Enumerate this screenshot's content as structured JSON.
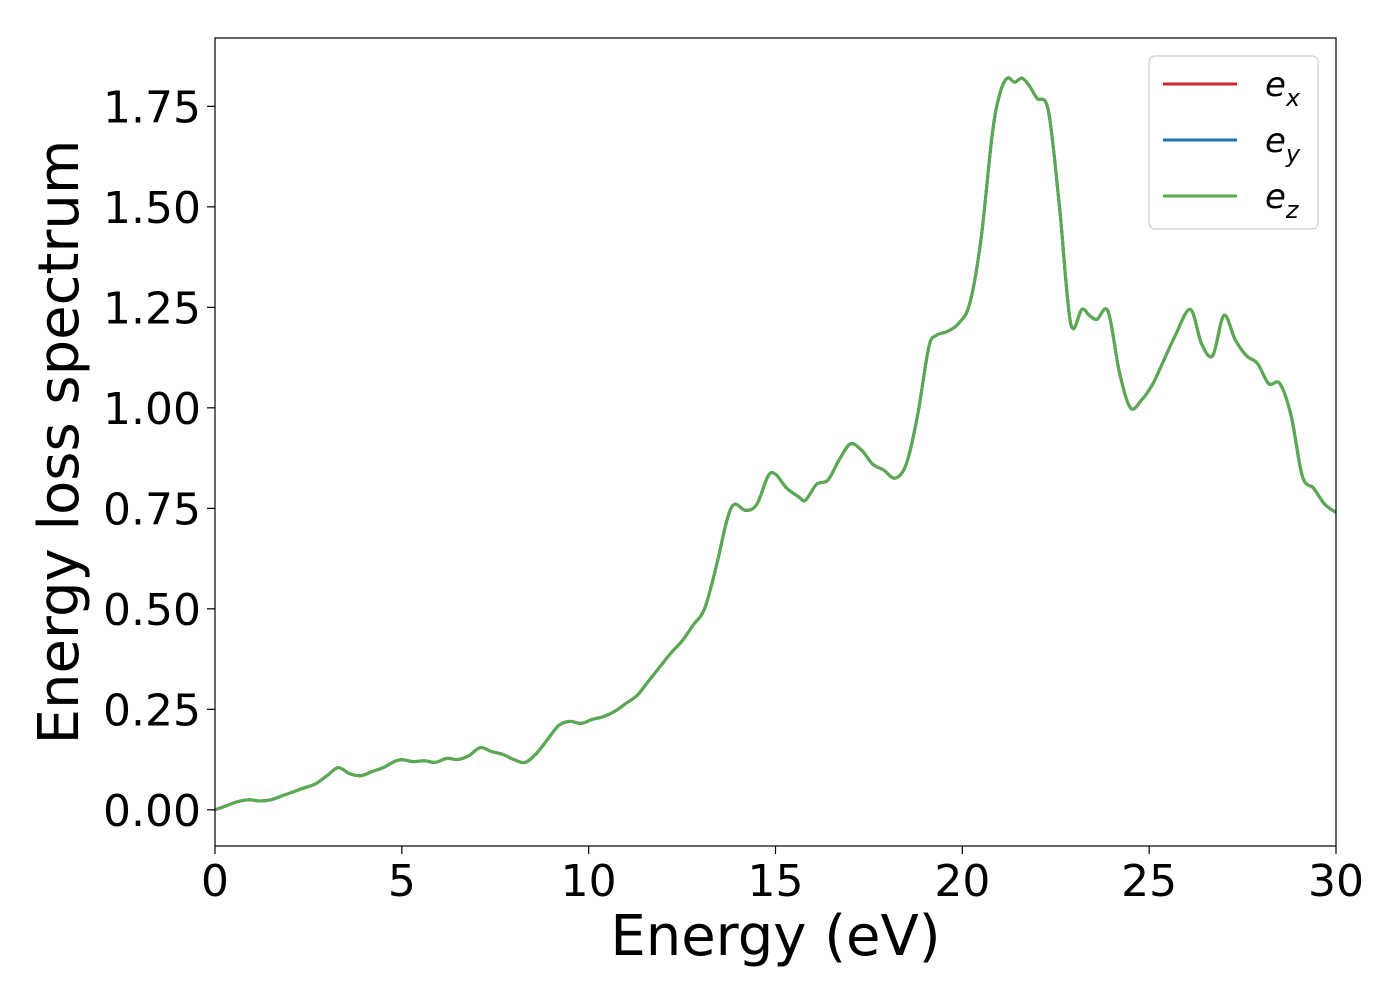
{
  "chart_data": {
    "type": "line",
    "title": "",
    "xlabel": "Energy (eV)",
    "ylabel": "Energy loss spectrum",
    "xlim": [
      0,
      30
    ],
    "ylim": [
      -0.09,
      1.92
    ],
    "xticks": [
      0,
      5,
      10,
      15,
      20,
      25,
      30
    ],
    "yticks": [
      0.0,
      0.25,
      0.5,
      0.75,
      1.0,
      1.25,
      1.5,
      1.75
    ],
    "ytick_labels": [
      "0.00",
      "0.25",
      "0.50",
      "0.75",
      "1.00",
      "1.25",
      "1.50",
      "1.75"
    ],
    "grid": false,
    "legend_position": "top-right",
    "x": [
      0,
      0.3,
      0.6,
      0.9,
      1.2,
      1.5,
      1.8,
      2.1,
      2.4,
      2.7,
      3.0,
      3.3,
      3.6,
      3.9,
      4.2,
      4.5,
      4.8,
      5.0,
      5.3,
      5.6,
      5.9,
      6.2,
      6.5,
      6.8,
      7.1,
      7.4,
      7.7,
      8.0,
      8.3,
      8.6,
      8.9,
      9.2,
      9.5,
      9.8,
      10.1,
      10.4,
      10.7,
      11.0,
      11.3,
      11.6,
      11.9,
      12.2,
      12.5,
      12.8,
      13.1,
      13.4,
      13.7,
      13.9,
      14.2,
      14.5,
      14.8,
      15.0,
      15.3,
      15.6,
      15.8,
      16.1,
      16.4,
      16.7,
      17.0,
      17.3,
      17.6,
      17.9,
      18.2,
      18.5,
      18.8,
      19.1,
      19.3,
      19.6,
      19.9,
      20.2,
      20.5,
      20.8,
      21.0,
      21.2,
      21.4,
      21.6,
      21.8,
      22.0,
      22.3,
      22.6,
      22.9,
      23.2,
      23.4,
      23.6,
      23.9,
      24.2,
      24.5,
      24.8,
      25.1,
      25.4,
      25.7,
      26.1,
      26.4,
      26.7,
      27.0,
      27.3,
      27.6,
      27.9,
      28.2,
      28.5,
      28.8,
      29.1,
      29.4,
      29.7,
      30.0
    ],
    "series": [
      {
        "name": "e_x",
        "legend_base": "e",
        "legend_sub": "x",
        "color": "#d62728",
        "values": [
          0.0,
          0.01,
          0.02,
          0.025,
          0.022,
          0.025,
          0.035,
          0.045,
          0.055,
          0.065,
          0.085,
          0.105,
          0.09,
          0.085,
          0.095,
          0.105,
          0.12,
          0.125,
          0.12,
          0.122,
          0.118,
          0.128,
          0.125,
          0.135,
          0.155,
          0.145,
          0.138,
          0.125,
          0.118,
          0.14,
          0.175,
          0.21,
          0.22,
          0.215,
          0.225,
          0.232,
          0.245,
          0.265,
          0.285,
          0.32,
          0.355,
          0.39,
          0.42,
          0.46,
          0.5,
          0.6,
          0.72,
          0.76,
          0.745,
          0.76,
          0.83,
          0.835,
          0.8,
          0.78,
          0.77,
          0.81,
          0.82,
          0.87,
          0.91,
          0.895,
          0.86,
          0.845,
          0.825,
          0.86,
          0.98,
          1.15,
          1.18,
          1.19,
          1.21,
          1.26,
          1.42,
          1.68,
          1.78,
          1.82,
          1.81,
          1.82,
          1.8,
          1.77,
          1.74,
          1.5,
          1.21,
          1.245,
          1.23,
          1.22,
          1.24,
          1.09,
          1.0,
          1.02,
          1.06,
          1.12,
          1.18,
          1.245,
          1.16,
          1.13,
          1.23,
          1.17,
          1.13,
          1.11,
          1.06,
          1.06,
          0.98,
          0.83,
          0.8,
          0.76,
          0.74
        ]
      },
      {
        "name": "e_y",
        "legend_base": "e",
        "legend_sub": "y",
        "color": "#1f77b4",
        "values": [
          0.0,
          0.01,
          0.02,
          0.025,
          0.022,
          0.025,
          0.035,
          0.045,
          0.055,
          0.065,
          0.085,
          0.105,
          0.09,
          0.085,
          0.095,
          0.105,
          0.12,
          0.125,
          0.12,
          0.122,
          0.118,
          0.128,
          0.125,
          0.135,
          0.155,
          0.145,
          0.138,
          0.125,
          0.118,
          0.14,
          0.175,
          0.21,
          0.22,
          0.215,
          0.225,
          0.232,
          0.245,
          0.265,
          0.285,
          0.32,
          0.355,
          0.39,
          0.42,
          0.46,
          0.5,
          0.6,
          0.72,
          0.76,
          0.745,
          0.76,
          0.83,
          0.835,
          0.8,
          0.78,
          0.77,
          0.81,
          0.82,
          0.87,
          0.91,
          0.895,
          0.86,
          0.845,
          0.825,
          0.86,
          0.98,
          1.15,
          1.18,
          1.19,
          1.21,
          1.26,
          1.42,
          1.68,
          1.78,
          1.82,
          1.81,
          1.82,
          1.8,
          1.77,
          1.74,
          1.5,
          1.21,
          1.245,
          1.23,
          1.22,
          1.24,
          1.09,
          1.0,
          1.02,
          1.06,
          1.12,
          1.18,
          1.245,
          1.16,
          1.13,
          1.23,
          1.17,
          1.13,
          1.11,
          1.06,
          1.06,
          0.98,
          0.83,
          0.8,
          0.76,
          0.74
        ]
      },
      {
        "name": "e_z",
        "legend_base": "e",
        "legend_sub": "z",
        "color": "#5aab50",
        "values": [
          0.0,
          0.01,
          0.02,
          0.025,
          0.022,
          0.025,
          0.035,
          0.045,
          0.055,
          0.065,
          0.085,
          0.105,
          0.09,
          0.085,
          0.095,
          0.105,
          0.12,
          0.125,
          0.12,
          0.122,
          0.118,
          0.128,
          0.125,
          0.135,
          0.155,
          0.145,
          0.138,
          0.125,
          0.118,
          0.14,
          0.175,
          0.21,
          0.22,
          0.215,
          0.225,
          0.232,
          0.245,
          0.265,
          0.285,
          0.32,
          0.355,
          0.39,
          0.42,
          0.46,
          0.5,
          0.6,
          0.72,
          0.76,
          0.745,
          0.76,
          0.83,
          0.835,
          0.8,
          0.78,
          0.77,
          0.81,
          0.82,
          0.87,
          0.91,
          0.895,
          0.86,
          0.845,
          0.825,
          0.86,
          0.98,
          1.15,
          1.18,
          1.19,
          1.21,
          1.26,
          1.42,
          1.68,
          1.78,
          1.82,
          1.81,
          1.82,
          1.8,
          1.77,
          1.74,
          1.5,
          1.21,
          1.245,
          1.23,
          1.22,
          1.24,
          1.09,
          1.0,
          1.02,
          1.06,
          1.12,
          1.18,
          1.245,
          1.16,
          1.13,
          1.23,
          1.17,
          1.13,
          1.11,
          1.06,
          1.06,
          0.98,
          0.83,
          0.8,
          0.76,
          0.74
        ]
      }
    ]
  }
}
